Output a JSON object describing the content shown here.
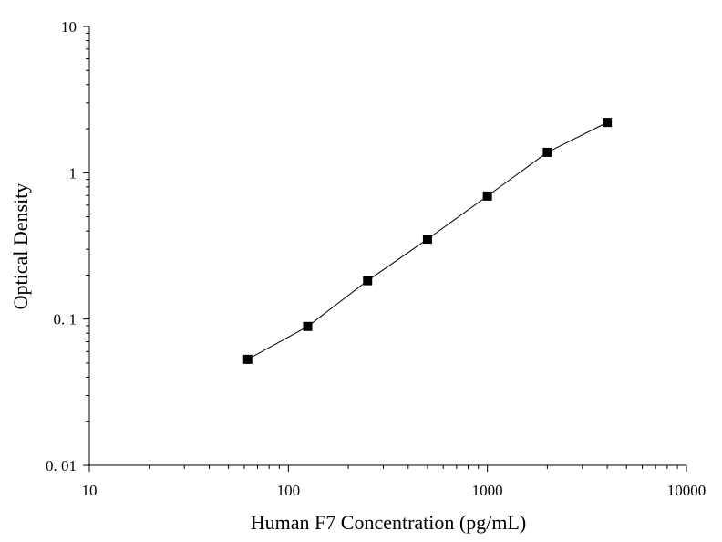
{
  "chart_data": {
    "type": "line",
    "xlabel": "Human F7 Concentration (pg/mL)",
    "ylabel": "Optical Density",
    "xscale": "log",
    "yscale": "log",
    "xlim": [
      10,
      10000
    ],
    "ylim": [
      0.01,
      10
    ],
    "x_ticks": [
      {
        "value": 10,
        "label": "10"
      },
      {
        "value": 100,
        "label": "100"
      },
      {
        "value": 1000,
        "label": "1000"
      },
      {
        "value": 10000,
        "label": "10000"
      }
    ],
    "y_ticks": [
      {
        "value": 0.01,
        "label": "0. 01"
      },
      {
        "value": 0.1,
        "label": "0. 1"
      },
      {
        "value": 1,
        "label": "1"
      },
      {
        "value": 10,
        "label": "10"
      }
    ],
    "grid": false,
    "marker": "square",
    "line_color": "#000000",
    "marker_color": "#000000",
    "series": [
      {
        "x": [
          62.5,
          125,
          250,
          500,
          1000,
          2000,
          4000
        ],
        "y": [
          0.053,
          0.089,
          0.183,
          0.352,
          0.693,
          1.38,
          2.21
        ]
      }
    ]
  }
}
